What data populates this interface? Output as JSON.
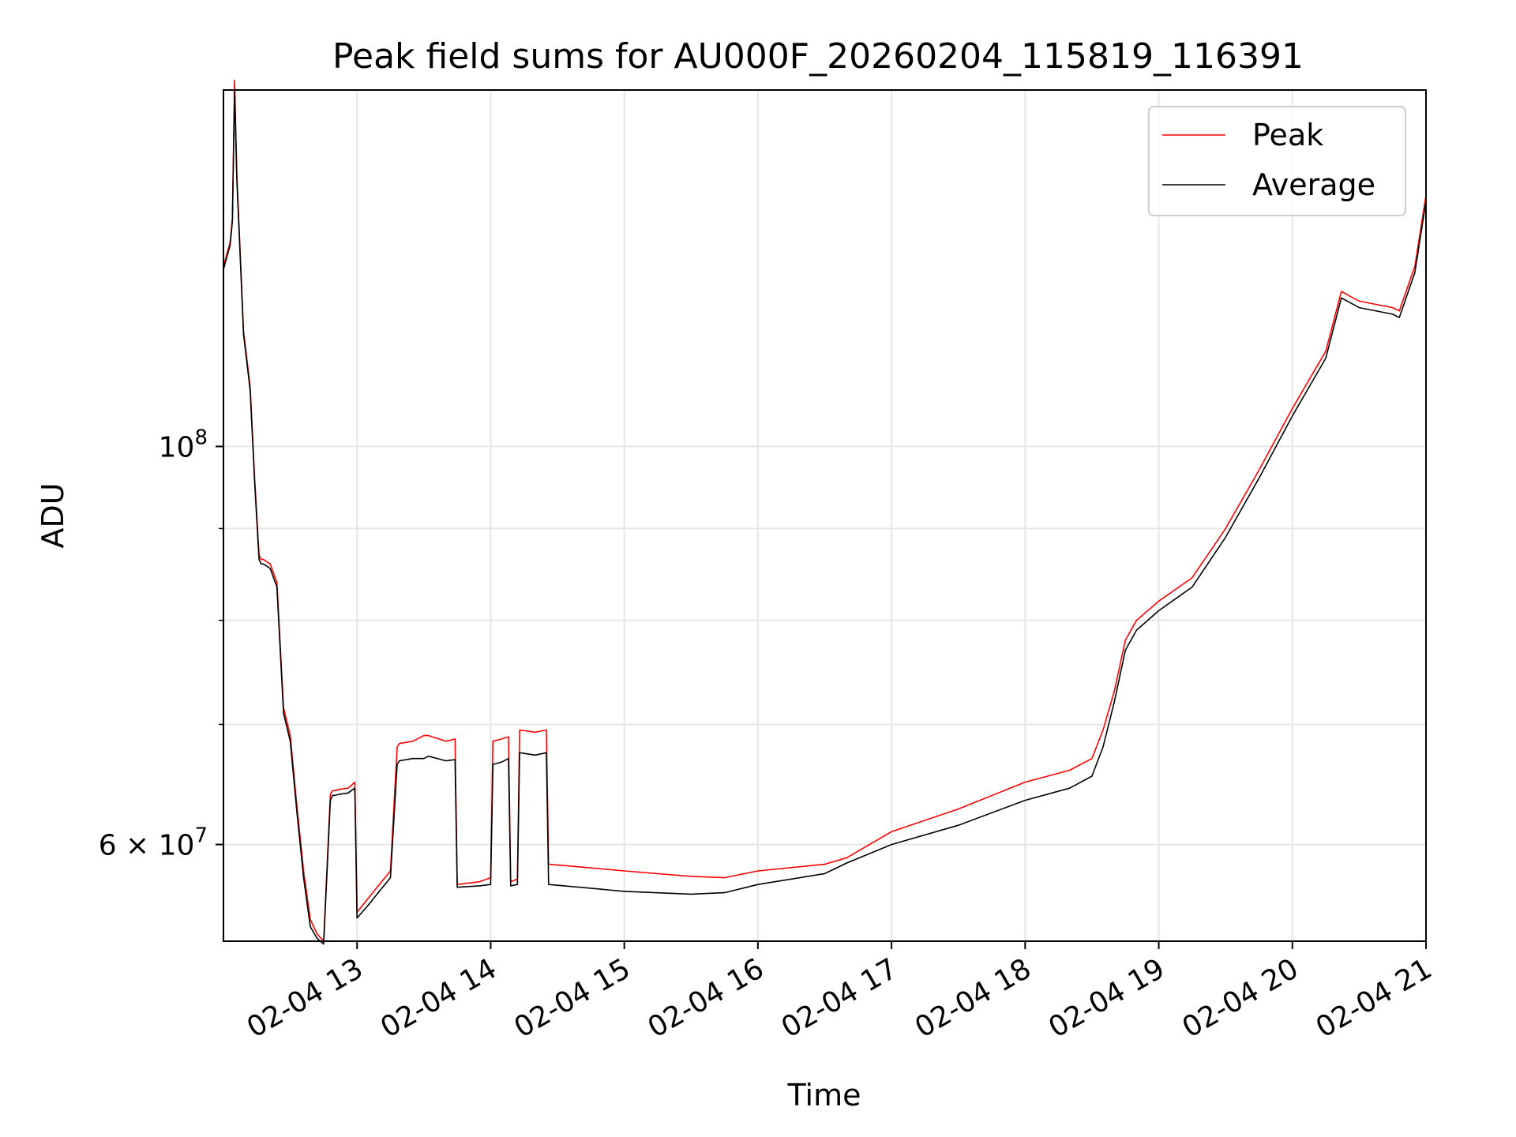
{
  "chart_data": {
    "type": "line",
    "title": "Peak field sums for AU000F_20260204_115819_116391",
    "xlabel": "Time",
    "ylabel": "ADU",
    "yscale": "log",
    "xlim": [
      "2026-02-04 12:00",
      "2026-02-04 21:00"
    ],
    "ylim": [
      53000000.0,
      158000000.0
    ],
    "grid": true,
    "legend_position": "top-right",
    "x_ticks": [
      {
        "value": "2026-02-04 13:00",
        "label": "02-04 13"
      },
      {
        "value": "2026-02-04 14:00",
        "label": "02-04 14"
      },
      {
        "value": "2026-02-04 15:00",
        "label": "02-04 15"
      },
      {
        "value": "2026-02-04 16:00",
        "label": "02-04 16"
      },
      {
        "value": "2026-02-04 17:00",
        "label": "02-04 17"
      },
      {
        "value": "2026-02-04 18:00",
        "label": "02-04 18"
      },
      {
        "value": "2026-02-04 19:00",
        "label": "02-04 19"
      },
      {
        "value": "2026-02-04 20:00",
        "label": "02-04 20"
      },
      {
        "value": "2026-02-04 21:00",
        "label": "02-04 21"
      }
    ],
    "y_ticks": [
      {
        "value": 100000000,
        "label": "10^8"
      },
      {
        "value": 60000000,
        "label": "6 × 10^7"
      }
    ],
    "y_minor_ticks": [
      60000000,
      70000000,
      80000000,
      90000000,
      100000000
    ],
    "series": [
      {
        "name": "Peak",
        "color": "#ff0000",
        "x": [
          "2026-02-04 12:00",
          "2026-02-04 12:03",
          "2026-02-04 12:04",
          "2026-02-04 12:05",
          "2026-02-04 12:06",
          "2026-02-04 12:08",
          "2026-02-04 12:09",
          "2026-02-04 12:12",
          "2026-02-04 12:14",
          "2026-02-04 12:16",
          "2026-02-04 12:17",
          "2026-02-04 12:18",
          "2026-02-04 12:21",
          "2026-02-04 12:24",
          "2026-02-04 12:27",
          "2026-02-04 12:30",
          "2026-02-04 12:33",
          "2026-02-04 12:36",
          "2026-02-04 12:39",
          "2026-02-04 12:42",
          "2026-02-04 12:45",
          "2026-02-04 12:48",
          "2026-02-04 12:49",
          "2026-02-04 12:50",
          "2026-02-04 12:52",
          "2026-02-04 12:56",
          "2026-02-04 12:59",
          "2026-02-04 13:00",
          "2026-02-04 13:05",
          "2026-02-04 13:10",
          "2026-02-04 13:15",
          "2026-02-04 13:18",
          "2026-02-04 13:19",
          "2026-02-04 13:25",
          "2026-02-04 13:30",
          "2026-02-04 13:32",
          "2026-02-04 13:40",
          "2026-02-04 13:44",
          "2026-02-04 13:45",
          "2026-02-04 13:55",
          "2026-02-04 14:00",
          "2026-02-04 14:01",
          "2026-02-04 14:05",
          "2026-02-04 14:08",
          "2026-02-04 14:09",
          "2026-02-04 14:12",
          "2026-02-04 14:13",
          "2026-02-04 14:20",
          "2026-02-04 14:25",
          "2026-02-04 14:26",
          "2026-02-04 14:40",
          "2026-02-04 15:00",
          "2026-02-04 15:30",
          "2026-02-04 15:45",
          "2026-02-04 16:00",
          "2026-02-04 16:30",
          "2026-02-04 16:40",
          "2026-02-04 17:00",
          "2026-02-04 17:30",
          "2026-02-04 18:00",
          "2026-02-04 18:20",
          "2026-02-04 18:30",
          "2026-02-04 18:35",
          "2026-02-04 18:40",
          "2026-02-04 18:45",
          "2026-02-04 18:50",
          "2026-02-04 19:00",
          "2026-02-04 19:15",
          "2026-02-04 19:30",
          "2026-02-04 19:45",
          "2026-02-04 20:00",
          "2026-02-04 20:15",
          "2026-02-04 20:22",
          "2026-02-04 20:30",
          "2026-02-04 20:45",
          "2026-02-04 20:48",
          "2026-02-04 20:55",
          "2026-02-04 21:00"
        ],
        "y": [
          126000000,
          130000000,
          134000000,
          160000000,
          142000000,
          124000000,
          116000000,
          108000000,
          96000000,
          87000000,
          86500000,
          86500000,
          86000000,
          84000000,
          71500000,
          69000000,
          63000000,
          58000000,
          54500000,
          53500000,
          53000000,
          64000000,
          64300000,
          64300000,
          64400000,
          64500000,
          65000000,
          55000000,
          56000000,
          57000000,
          58000000,
          68000000,
          68300000,
          68500000,
          69000000,
          69000000,
          68500000,
          68700000,
          57000000,
          57200000,
          57500000,
          68500000,
          68700000,
          68900000,
          57200000,
          57400000,
          69500000,
          69300000,
          69500000,
          58500000,
          58300000,
          58000000,
          57600000,
          57500000,
          58000000,
          58500000,
          59000000,
          61000000,
          62800000,
          65000000,
          66000000,
          67000000,
          69500000,
          73000000,
          78000000,
          80000000,
          82000000,
          84500000,
          90000000,
          97000000,
          105000000,
          113000000,
          122000000,
          120500000,
          119500000,
          119000000,
          126000000,
          138000000
        ]
      },
      {
        "name": "Average",
        "color": "#000000",
        "x": [
          "2026-02-04 12:00",
          "2026-02-04 12:03",
          "2026-02-04 12:04",
          "2026-02-04 12:05",
          "2026-02-04 12:06",
          "2026-02-04 12:08",
          "2026-02-04 12:09",
          "2026-02-04 12:12",
          "2026-02-04 12:14",
          "2026-02-04 12:16",
          "2026-02-04 12:17",
          "2026-02-04 12:18",
          "2026-02-04 12:21",
          "2026-02-04 12:24",
          "2026-02-04 12:27",
          "2026-02-04 12:30",
          "2026-02-04 12:33",
          "2026-02-04 12:36",
          "2026-02-04 12:39",
          "2026-02-04 12:42",
          "2026-02-04 12:45",
          "2026-02-04 12:48",
          "2026-02-04 12:49",
          "2026-02-04 12:50",
          "2026-02-04 12:52",
          "2026-02-04 12:56",
          "2026-02-04 12:59",
          "2026-02-04 13:00",
          "2026-02-04 13:05",
          "2026-02-04 13:10",
          "2026-02-04 13:15",
          "2026-02-04 13:18",
          "2026-02-04 13:19",
          "2026-02-04 13:25",
          "2026-02-04 13:30",
          "2026-02-04 13:32",
          "2026-02-04 13:40",
          "2026-02-04 13:44",
          "2026-02-04 13:45",
          "2026-02-04 13:55",
          "2026-02-04 14:00",
          "2026-02-04 14:01",
          "2026-02-04 14:05",
          "2026-02-04 14:08",
          "2026-02-04 14:09",
          "2026-02-04 14:12",
          "2026-02-04 14:13",
          "2026-02-04 14:20",
          "2026-02-04 14:25",
          "2026-02-04 14:26",
          "2026-02-04 14:40",
          "2026-02-04 15:00",
          "2026-02-04 15:30",
          "2026-02-04 15:45",
          "2026-02-04 16:00",
          "2026-02-04 16:30",
          "2026-02-04 16:40",
          "2026-02-04 17:00",
          "2026-02-04 17:30",
          "2026-02-04 18:00",
          "2026-02-04 18:20",
          "2026-02-04 18:30",
          "2026-02-04 18:35",
          "2026-02-04 18:40",
          "2026-02-04 18:45",
          "2026-02-04 18:50",
          "2026-02-04 19:00",
          "2026-02-04 19:15",
          "2026-02-04 19:30",
          "2026-02-04 19:45",
          "2026-02-04 20:00",
          "2026-02-04 20:15",
          "2026-02-04 20:22",
          "2026-02-04 20:30",
          "2026-02-04 20:45",
          "2026-02-04 20:48",
          "2026-02-04 20:55",
          "2026-02-04 21:00"
        ],
        "y": [
          125500000,
          129500000,
          133500000,
          158000000,
          141000000,
          123500000,
          115500000,
          107500000,
          95500000,
          86500000,
          86000000,
          86000000,
          85500000,
          83500000,
          71000000,
          68500000,
          62500000,
          57500000,
          54000000,
          53200000,
          52800000,
          63500000,
          63900000,
          63900000,
          64000000,
          64100000,
          64500000,
          54600000,
          55500000,
          56500000,
          57500000,
          66500000,
          66800000,
          67000000,
          67000000,
          67200000,
          66800000,
          66900000,
          56800000,
          56900000,
          57000000,
          66500000,
          66700000,
          67000000,
          56900000,
          57000000,
          67500000,
          67300000,
          67500000,
          57000000,
          56800000,
          56500000,
          56300000,
          56400000,
          57000000,
          57800000,
          58600000,
          60000000,
          61500000,
          63500000,
          64500000,
          65500000,
          68000000,
          72000000,
          77000000,
          79000000,
          81000000,
          83500000,
          89000000,
          96000000,
          104000000,
          112000000,
          121000000,
          119500000,
          118500000,
          118000000,
          125000000,
          137000000
        ]
      }
    ]
  }
}
